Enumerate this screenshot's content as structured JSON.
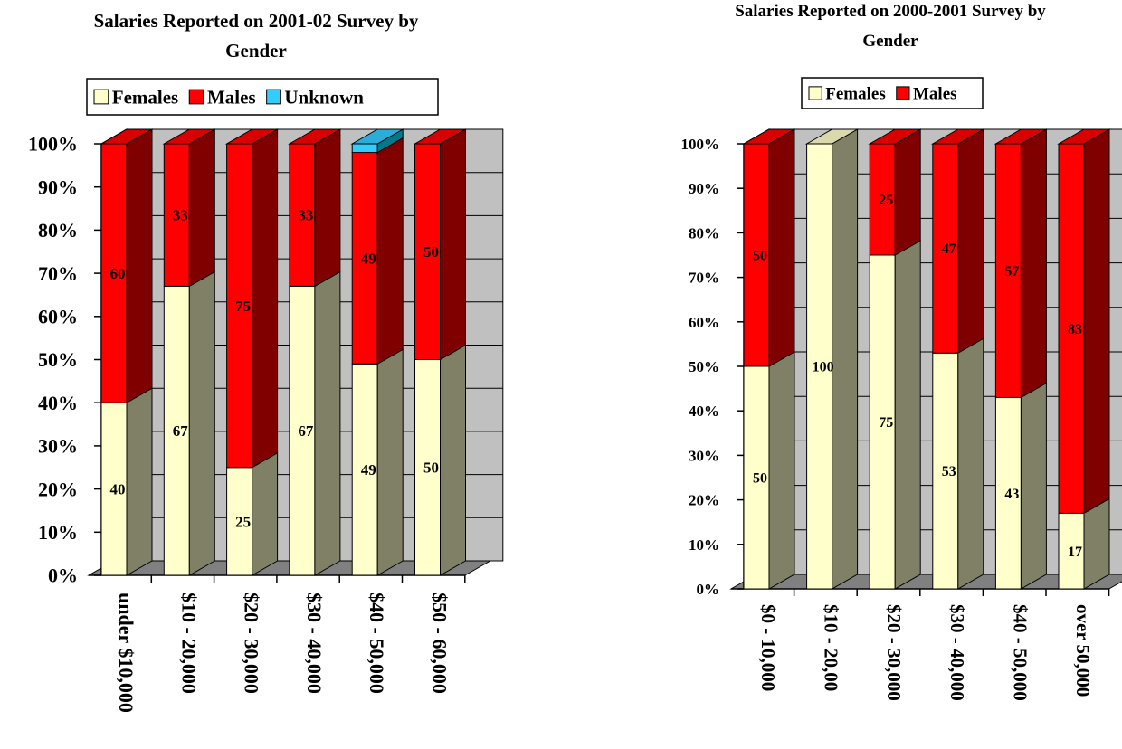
{
  "colors": {
    "females": "#ffffcc",
    "males": "#ff0000",
    "unknown": "#33ccff",
    "wall": "#c0c0c0",
    "floor": "#808080"
  },
  "chart_data": [
    {
      "type": "bar",
      "stacked": "percent",
      "title_lines": [
        "Salaries Reported on 2001-02 Survey by",
        "Gender"
      ],
      "categories": [
        "under $10,000",
        "$10 - 20,000",
        "$20 - 30,000",
        "$30 - 40,000",
        "$40 - 50,000",
        "$50 - 60,000"
      ],
      "series": [
        {
          "name": "Females",
          "values": [
            40,
            67,
            25,
            67,
            49,
            50
          ],
          "labels": [
            "40",
            "67",
            "25",
            "67",
            "49",
            "50"
          ]
        },
        {
          "name": "Males",
          "values": [
            60,
            33,
            75,
            33,
            49,
            50
          ],
          "labels": [
            "60",
            "33",
            "75",
            "33",
            "49",
            "50"
          ]
        },
        {
          "name": "Unknown",
          "values": [
            0,
            0,
            0,
            0,
            2,
            0
          ],
          "labels": [
            "",
            "",
            "",
            "",
            "",
            ""
          ]
        }
      ],
      "ylim": [
        0,
        100
      ],
      "yticks": [
        "0%",
        "10%",
        "20%",
        "30%",
        "40%",
        "50%",
        "60%",
        "70%",
        "80%",
        "90%",
        "100%"
      ],
      "legend": "top",
      "grid": true
    },
    {
      "type": "bar",
      "stacked": "percent",
      "title_lines": [
        "Salaries Reported on 2000-2001 Survey by",
        "Gender"
      ],
      "categories": [
        "$0 - 10,000",
        "$10 - 20,00",
        "$20 - 30,000",
        "$30 - 40,000",
        "$40 - 50,000",
        "over 50,000"
      ],
      "series": [
        {
          "name": "Females",
          "values": [
            50,
            100,
            75,
            53,
            43,
            17
          ],
          "labels": [
            "50",
            "100",
            "75",
            "53",
            "43",
            "17"
          ]
        },
        {
          "name": "Males",
          "values": [
            50,
            0,
            25,
            47,
            57,
            83
          ],
          "labels": [
            "50",
            "",
            "25",
            "47",
            "57",
            "83"
          ]
        }
      ],
      "ylim": [
        0,
        100
      ],
      "yticks": [
        "0%",
        "10%",
        "20%",
        "30%",
        "40%",
        "50%",
        "60%",
        "70%",
        "80%",
        "90%",
        "100%"
      ],
      "legend": "top",
      "grid": true
    }
  ]
}
